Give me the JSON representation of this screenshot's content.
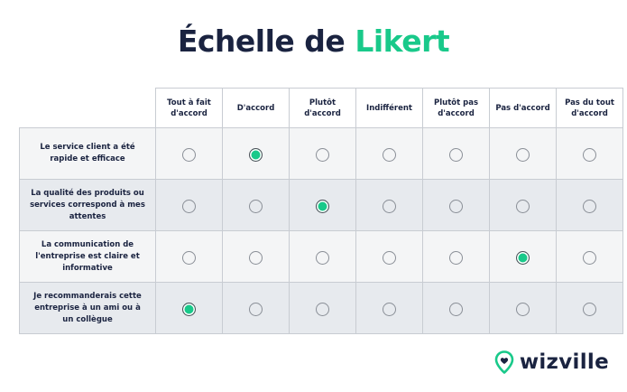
{
  "title": {
    "part1": "Échelle de",
    "part2": "Likert"
  },
  "colors": {
    "accent": "#19c98a",
    "dark": "#1a2340",
    "row_light": "#f4f5f6",
    "row_dark": "#e7eaee"
  },
  "columns": [
    "Tout à fait d'accord",
    "D'accord",
    "Plutôt d'accord",
    "Indifférent",
    "Plutôt pas d'accord",
    "Pas d'accord",
    "Pas du tout d'accord"
  ],
  "rows": [
    {
      "label": "Le service client a été rapide et efficace",
      "selected": 1
    },
    {
      "label": "La qualité des produits ou services correspond à mes attentes",
      "selected": 2
    },
    {
      "label": "La communication de l'entreprise est claire et informative",
      "selected": 5
    },
    {
      "label": "Je recommanderais cette entreprise à un ami ou à un collègue",
      "selected": 0
    }
  ],
  "logo": {
    "text": "wizville",
    "icon": "location-pin-heart-icon"
  }
}
